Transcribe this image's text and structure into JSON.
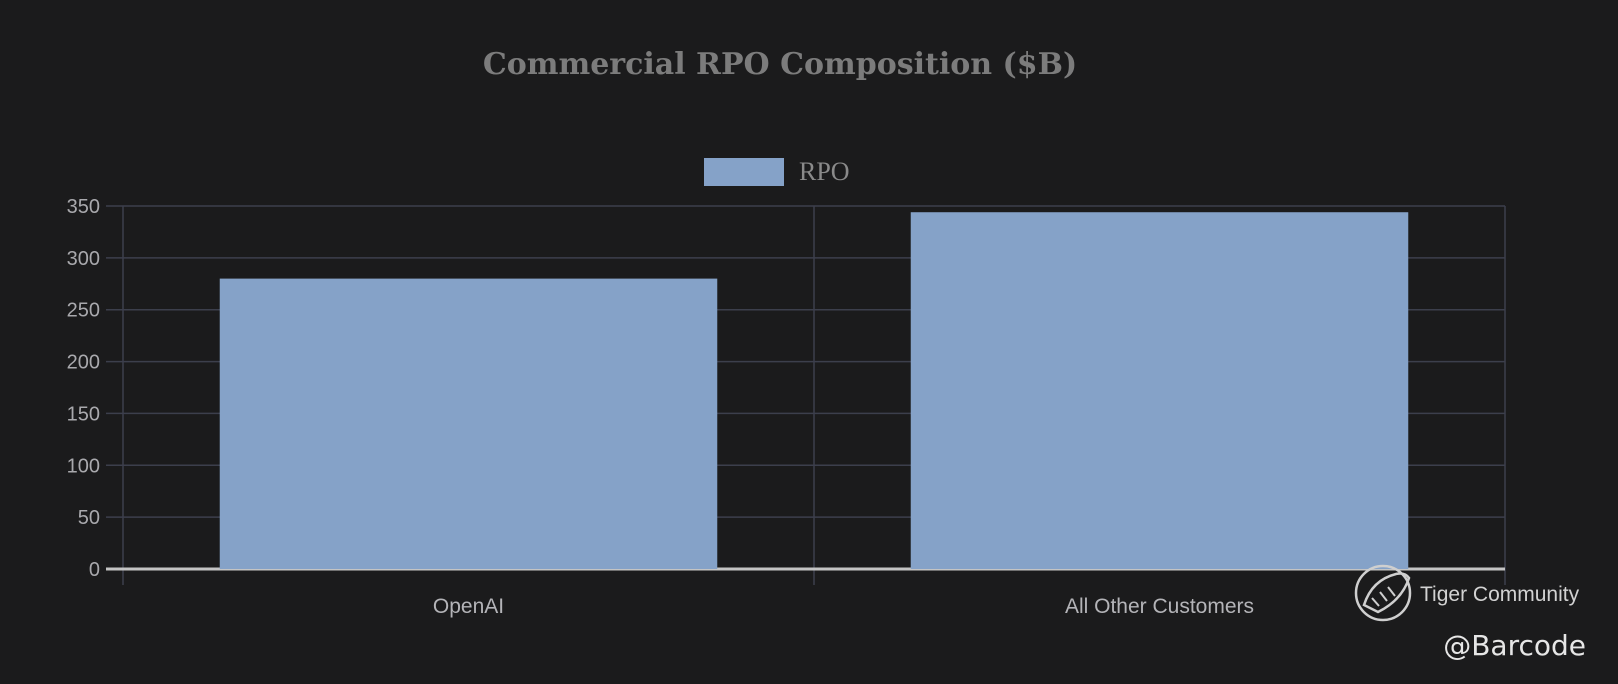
{
  "chart_data": {
    "type": "bar",
    "title": "Commercial RPO Composition ($B)",
    "categories": [
      "OpenAI",
      "All Other Customers"
    ],
    "series": [
      {
        "name": "RPO",
        "values": [
          280,
          344
        ]
      }
    ],
    "xlabel": "",
    "ylabel": "",
    "ylim": [
      0,
      350
    ],
    "yticks": [
      "0",
      "50",
      "100",
      "150",
      "200",
      "250",
      "300",
      "350"
    ],
    "grid": true,
    "legend_position": "top",
    "colors": {
      "bar": "#85a2c8",
      "background": "#1b1b1c",
      "grid": "#3c3f4c"
    }
  },
  "watermark": {
    "brand": "Tiger Community",
    "logo_icon": "tiger-logo-icon",
    "handle": "@Barcode"
  }
}
